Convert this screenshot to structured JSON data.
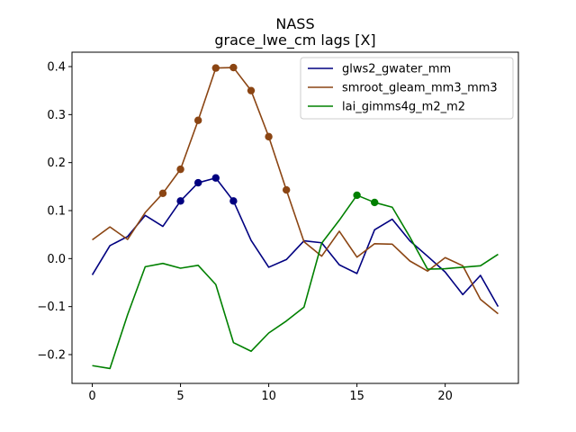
{
  "chart_data": {
    "type": "line",
    "title": "NASS",
    "subtitle": "grace_lwe_cm lags [X]",
    "xlabel": "",
    "ylabel": "",
    "xlim": [
      -1.15,
      24.15
    ],
    "ylim": [
      -0.26,
      0.43
    ],
    "xticks": [
      0,
      5,
      10,
      15,
      20
    ],
    "yticks": [
      -0.2,
      -0.1,
      0.0,
      0.1,
      0.2,
      0.3,
      0.4
    ],
    "ytick_labels": [
      "−0.2",
      "−0.1",
      "0.0",
      "0.1",
      "0.2",
      "0.3",
      "0.4"
    ],
    "x": [
      0,
      1,
      2,
      3,
      4,
      5,
      6,
      7,
      8,
      9,
      10,
      11,
      12,
      13,
      14,
      15,
      16,
      17,
      18,
      19,
      20,
      21,
      22,
      23
    ],
    "legend_position": "upper-right",
    "series": [
      {
        "name": "glws2_gwater_mm",
        "color": "#000080",
        "values": [
          -0.034,
          0.027,
          0.046,
          0.09,
          0.067,
          0.12,
          0.158,
          0.168,
          0.12,
          0.038,
          -0.018,
          -0.002,
          0.037,
          0.033,
          -0.013,
          -0.031,
          0.06,
          0.082,
          0.037,
          0.005,
          -0.028,
          -0.075,
          -0.035,
          -0.1
        ],
        "markers": [
          5,
          6,
          7,
          8
        ]
      },
      {
        "name": "smroot_gleam_mm3_mm3",
        "color": "#8B4513",
        "values": [
          0.039,
          0.066,
          0.04,
          0.096,
          0.136,
          0.186,
          0.288,
          0.397,
          0.398,
          0.35,
          0.254,
          0.143,
          0.035,
          0.005,
          0.057,
          0.003,
          0.031,
          0.03,
          -0.005,
          -0.026,
          0.002,
          -0.015,
          -0.085,
          -0.115
        ],
        "markers": [
          4,
          5,
          6,
          7,
          8,
          9,
          10,
          11
        ]
      },
      {
        "name": "lai_gimms4g_m2_m2",
        "color": "#008000",
        "values": [
          -0.223,
          -0.229,
          -0.117,
          -0.017,
          -0.01,
          -0.02,
          -0.014,
          -0.054,
          -0.175,
          -0.193,
          -0.155,
          -0.13,
          -0.101,
          0.032,
          0.08,
          0.132,
          0.117,
          0.107,
          0.045,
          -0.022,
          -0.021,
          -0.018,
          -0.015,
          0.009
        ],
        "markers": [
          15,
          16
        ]
      }
    ]
  }
}
